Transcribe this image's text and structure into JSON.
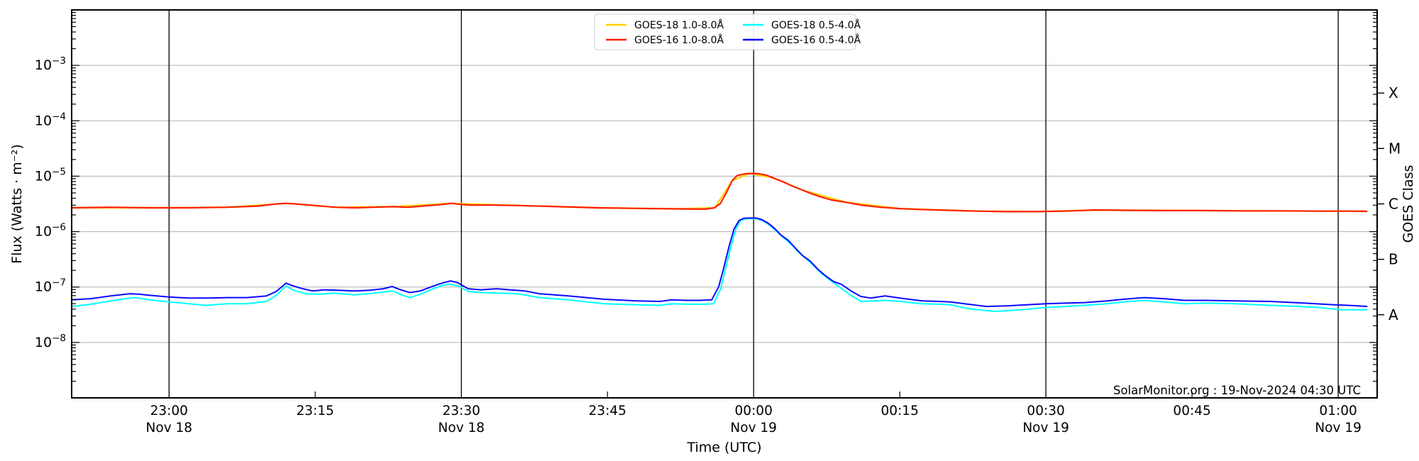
{
  "chart_data": {
    "type": "line",
    "title": "",
    "xlabel": "Time (UTC)",
    "ylabel": "Flux (Watts · m⁻²)",
    "ylabel_right": "GOES Class",
    "watermark": "SolarMonitor.org : 19-Nov-2024 04:30 UTC",
    "grid": true,
    "y_scale": "log",
    "y_range_exponents": [
      -9,
      -2
    ],
    "x_range_minutes": [
      0,
      134
    ],
    "x_start_time": "22:50 UTC Nov 18",
    "x_ticks": [
      {
        "t": 10,
        "label": "23:00",
        "date": "Nov 18",
        "line": true
      },
      {
        "t": 25,
        "label": "23:15",
        "date": "",
        "line": false
      },
      {
        "t": 40,
        "label": "23:30",
        "date": "Nov 18",
        "line": true
      },
      {
        "t": 55,
        "label": "23:45",
        "date": "",
        "line": false
      },
      {
        "t": 70,
        "label": "00:00",
        "date": "Nov 19",
        "line": true
      },
      {
        "t": 85,
        "label": "00:15",
        "date": "",
        "line": false
      },
      {
        "t": 100,
        "label": "00:30",
        "date": "Nov 19",
        "line": true
      },
      {
        "t": 115,
        "label": "00:45",
        "date": "",
        "line": false
      },
      {
        "t": 130,
        "label": "01:00",
        "date": "Nov 19",
        "line": true
      }
    ],
    "y_ticks": [
      {
        "exp": -3,
        "label": "10⁻³"
      },
      {
        "exp": -4,
        "label": "10⁻⁴"
      },
      {
        "exp": -5,
        "label": "10⁻⁵"
      },
      {
        "exp": -6,
        "label": "10⁻⁶"
      },
      {
        "exp": -7,
        "label": "10⁻⁷"
      },
      {
        "exp": -8,
        "label": "10⁻⁸"
      }
    ],
    "goes_classes": [
      {
        "label": "X",
        "exp": -3.5
      },
      {
        "label": "M",
        "exp": -4.5
      },
      {
        "label": "C",
        "exp": -5.5
      },
      {
        "label": "B",
        "exp": -6.5
      },
      {
        "label": "A",
        "exp": -7.5
      }
    ],
    "legend": {
      "position": "top-center",
      "entries": [
        {
          "label": "GOES-18 1.0-8.0Å",
          "color": "#ffd200"
        },
        {
          "label": "GOES-16 1.0-8.0Å",
          "color": "#ff2000"
        },
        {
          "label": "GOES-18 0.5-4.0Å",
          "color": "#00ffff"
        },
        {
          "label": "GOES-16 0.5-4.0Å",
          "color": "#0a0aff"
        }
      ]
    },
    "series": [
      {
        "name": "GOES-18 1.0-8.0Å",
        "color": "#ffd200",
        "width": 2.2,
        "note": "hidden beneath GOES-16 long channel",
        "points": [
          [
            0,
            -5.57
          ],
          [
            8,
            -5.57
          ],
          [
            16,
            -5.56
          ],
          [
            22,
            -5.49
          ],
          [
            27,
            -5.56
          ],
          [
            33,
            -5.55
          ],
          [
            39,
            -5.49
          ],
          [
            46,
            -5.53
          ],
          [
            54,
            -5.57
          ],
          [
            62,
            -5.59
          ],
          [
            66,
            -5.57
          ],
          [
            67.8,
            -5.08
          ],
          [
            69.6,
            -4.95
          ],
          [
            72,
            -5.03
          ],
          [
            75,
            -5.25
          ],
          [
            79.5,
            -5.47
          ],
          [
            85,
            -5.585
          ],
          [
            93,
            -5.63
          ],
          [
            99,
            -5.64
          ],
          [
            105,
            -5.61
          ],
          [
            116,
            -5.62
          ],
          [
            128,
            -5.63
          ],
          [
            133,
            -5.635
          ]
        ]
      },
      {
        "name": "GOES-16 1.0-8.0Å",
        "color": "#ff2000",
        "width": 2.2,
        "points": [
          [
            0,
            -5.57
          ],
          [
            4,
            -5.56
          ],
          [
            8,
            -5.57
          ],
          [
            12,
            -5.57
          ],
          [
            16,
            -5.56
          ],
          [
            19,
            -5.54
          ],
          [
            21,
            -5.5
          ],
          [
            22,
            -5.49
          ],
          [
            23,
            -5.5
          ],
          [
            25,
            -5.53
          ],
          [
            27,
            -5.56
          ],
          [
            29,
            -5.57
          ],
          [
            31,
            -5.56
          ],
          [
            33,
            -5.55
          ],
          [
            34.5,
            -5.56
          ],
          [
            36,
            -5.54
          ],
          [
            38,
            -5.51
          ],
          [
            39,
            -5.49
          ],
          [
            40,
            -5.51
          ],
          [
            41,
            -5.52
          ],
          [
            43,
            -5.52
          ],
          [
            46,
            -5.53
          ],
          [
            50,
            -5.55
          ],
          [
            54,
            -5.57
          ],
          [
            58,
            -5.58
          ],
          [
            62,
            -5.59
          ],
          [
            65,
            -5.595
          ],
          [
            66,
            -5.57
          ],
          [
            66.6,
            -5.49
          ],
          [
            67.2,
            -5.3
          ],
          [
            67.8,
            -5.08
          ],
          [
            68.3,
            -4.99
          ],
          [
            69,
            -4.96
          ],
          [
            69.6,
            -4.95
          ],
          [
            70.5,
            -4.955
          ],
          [
            71.3,
            -4.98
          ],
          [
            72,
            -5.03
          ],
          [
            73,
            -5.1
          ],
          [
            74,
            -5.18
          ],
          [
            75,
            -5.25
          ],
          [
            76,
            -5.32
          ],
          [
            77,
            -5.38
          ],
          [
            78,
            -5.43
          ],
          [
            79.5,
            -5.47
          ],
          [
            81,
            -5.52
          ],
          [
            83,
            -5.56
          ],
          [
            85,
            -5.585
          ],
          [
            87,
            -5.6
          ],
          [
            90,
            -5.615
          ],
          [
            93,
            -5.63
          ],
          [
            96,
            -5.64
          ],
          [
            99,
            -5.64
          ],
          [
            102,
            -5.63
          ],
          [
            105,
            -5.61
          ],
          [
            108,
            -5.615
          ],
          [
            112,
            -5.62
          ],
          [
            116,
            -5.62
          ],
          [
            120,
            -5.625
          ],
          [
            124,
            -5.625
          ],
          [
            128,
            -5.63
          ],
          [
            131,
            -5.63
          ],
          [
            133,
            -5.635
          ]
        ]
      },
      {
        "name": "GOES-18 0.5-4.0Å",
        "color": "#00ffff",
        "width": 2.0,
        "points": [
          [
            0,
            -7.35
          ],
          [
            2,
            -7.31
          ],
          [
            4,
            -7.25
          ],
          [
            6,
            -7.2
          ],
          [
            6.5,
            -7.19
          ],
          [
            8,
            -7.23
          ],
          [
            10,
            -7.27
          ],
          [
            12,
            -7.3
          ],
          [
            13.8,
            -7.33
          ],
          [
            16,
            -7.3
          ],
          [
            18,
            -7.3
          ],
          [
            20,
            -7.26
          ],
          [
            21,
            -7.15
          ],
          [
            22,
            -6.98
          ],
          [
            22.8,
            -7.06
          ],
          [
            24,
            -7.12
          ],
          [
            25.5,
            -7.13
          ],
          [
            27,
            -7.11
          ],
          [
            29,
            -7.14
          ],
          [
            30.5,
            -7.12
          ],
          [
            32,
            -7.09
          ],
          [
            32.9,
            -7.07
          ],
          [
            34,
            -7.15
          ],
          [
            34.7,
            -7.19
          ],
          [
            35.8,
            -7.13
          ],
          [
            37,
            -7.04
          ],
          [
            38,
            -6.97
          ],
          [
            38.9,
            -6.95
          ],
          [
            39.8,
            -6.99
          ],
          [
            40.7,
            -7.08
          ],
          [
            42,
            -7.1
          ],
          [
            43.6,
            -7.11
          ],
          [
            45.8,
            -7.12
          ],
          [
            48,
            -7.19
          ],
          [
            51,
            -7.23
          ],
          [
            54.6,
            -7.3
          ],
          [
            58,
            -7.32
          ],
          [
            60.4,
            -7.33
          ],
          [
            61.6,
            -7.3
          ],
          [
            63,
            -7.31
          ],
          [
            65,
            -7.31
          ],
          [
            65.9,
            -7.3
          ],
          [
            66.6,
            -7.04
          ],
          [
            67.1,
            -6.68
          ],
          [
            67.7,
            -6.25
          ],
          [
            68.2,
            -5.94
          ],
          [
            68.7,
            -5.79
          ],
          [
            69.2,
            -5.77
          ],
          [
            69.8,
            -5.765
          ],
          [
            70.4,
            -5.77
          ],
          [
            71,
            -5.81
          ],
          [
            71.7,
            -5.89
          ],
          [
            72.4,
            -6.0
          ],
          [
            73,
            -6.1
          ],
          [
            73.8,
            -6.22
          ],
          [
            74.6,
            -6.37
          ],
          [
            75.4,
            -6.49
          ],
          [
            76.2,
            -6.62
          ],
          [
            77,
            -6.76
          ],
          [
            77.8,
            -6.87
          ],
          [
            78.8,
            -7.0
          ],
          [
            80,
            -7.15
          ],
          [
            81,
            -7.26
          ],
          [
            82.5,
            -7.25
          ],
          [
            83.5,
            -7.24
          ],
          [
            85,
            -7.26
          ],
          [
            87.2,
            -7.3
          ],
          [
            89,
            -7.31
          ],
          [
            90.2,
            -7.32
          ],
          [
            92,
            -7.39
          ],
          [
            94.8,
            -7.44
          ],
          [
            97.5,
            -7.41
          ],
          [
            99.9,
            -7.37
          ],
          [
            102,
            -7.35
          ],
          [
            104,
            -7.33
          ],
          [
            106.3,
            -7.3
          ],
          [
            108,
            -7.27
          ],
          [
            110.1,
            -7.24
          ],
          [
            112.1,
            -7.27
          ],
          [
            114.2,
            -7.3
          ],
          [
            116.4,
            -7.29
          ],
          [
            119.4,
            -7.3
          ],
          [
            123,
            -7.33
          ],
          [
            125.9,
            -7.35
          ],
          [
            128.1,
            -7.37
          ],
          [
            130.3,
            -7.41
          ],
          [
            133,
            -7.41
          ]
        ]
      },
      {
        "name": "GOES-16 0.5-4.0Å",
        "color": "#0a0aff",
        "width": 2.0,
        "points": [
          [
            0,
            -7.23
          ],
          [
            2,
            -7.21
          ],
          [
            4,
            -7.16
          ],
          [
            6,
            -7.12
          ],
          [
            7,
            -7.13
          ],
          [
            8,
            -7.15
          ],
          [
            10,
            -7.18
          ],
          [
            12,
            -7.2
          ],
          [
            14,
            -7.2
          ],
          [
            16,
            -7.19
          ],
          [
            18,
            -7.19
          ],
          [
            20,
            -7.16
          ],
          [
            21,
            -7.08
          ],
          [
            22,
            -6.93
          ],
          [
            22.6,
            -6.97
          ],
          [
            23.5,
            -7.02
          ],
          [
            24.7,
            -7.07
          ],
          [
            26,
            -7.05
          ],
          [
            27.5,
            -7.06
          ],
          [
            29,
            -7.07
          ],
          [
            30.5,
            -7.06
          ],
          [
            32,
            -7.03
          ],
          [
            32.9,
            -6.99
          ],
          [
            33.6,
            -7.04
          ],
          [
            34.7,
            -7.1
          ],
          [
            35.8,
            -7.07
          ],
          [
            37,
            -6.99
          ],
          [
            38,
            -6.93
          ],
          [
            38.9,
            -6.89
          ],
          [
            39.6,
            -6.92
          ],
          [
            40.7,
            -7.03
          ],
          [
            42,
            -7.05
          ],
          [
            43.6,
            -7.03
          ],
          [
            45,
            -7.05
          ],
          [
            46.5,
            -7.07
          ],
          [
            48,
            -7.12
          ],
          [
            51,
            -7.16
          ],
          [
            54.6,
            -7.22
          ],
          [
            58,
            -7.25
          ],
          [
            60.4,
            -7.26
          ],
          [
            61.6,
            -7.23
          ],
          [
            63,
            -7.24
          ],
          [
            64.5,
            -7.24
          ],
          [
            65.7,
            -7.23
          ],
          [
            66.4,
            -7.0
          ],
          [
            66.9,
            -6.68
          ],
          [
            67.5,
            -6.25
          ],
          [
            68,
            -5.95
          ],
          [
            68.5,
            -5.8
          ],
          [
            69,
            -5.76
          ],
          [
            69.6,
            -5.755
          ],
          [
            70.2,
            -5.755
          ],
          [
            70.8,
            -5.78
          ],
          [
            71.5,
            -5.85
          ],
          [
            72.2,
            -5.95
          ],
          [
            72.8,
            -6.06
          ],
          [
            73.5,
            -6.15
          ],
          [
            74.2,
            -6.28
          ],
          [
            75,
            -6.43
          ],
          [
            75.8,
            -6.53
          ],
          [
            76.6,
            -6.68
          ],
          [
            77.4,
            -6.8
          ],
          [
            78.2,
            -6.9
          ],
          [
            79,
            -6.95
          ],
          [
            80,
            -7.07
          ],
          [
            81,
            -7.17
          ],
          [
            82,
            -7.2
          ],
          [
            83.5,
            -7.16
          ],
          [
            85,
            -7.2
          ],
          [
            87.3,
            -7.25
          ],
          [
            89,
            -7.26
          ],
          [
            90.2,
            -7.27
          ],
          [
            92,
            -7.31
          ],
          [
            93.9,
            -7.35
          ],
          [
            96,
            -7.34
          ],
          [
            98,
            -7.32
          ],
          [
            100,
            -7.3
          ],
          [
            102,
            -7.29
          ],
          [
            104,
            -7.28
          ],
          [
            106.3,
            -7.25
          ],
          [
            108,
            -7.22
          ],
          [
            110.1,
            -7.19
          ],
          [
            112.1,
            -7.21
          ],
          [
            114.2,
            -7.24
          ],
          [
            116.4,
            -7.24
          ],
          [
            119.4,
            -7.25
          ],
          [
            123,
            -7.26
          ],
          [
            126.6,
            -7.29
          ],
          [
            129.6,
            -7.32
          ],
          [
            131,
            -7.33
          ],
          [
            133,
            -7.35
          ]
        ]
      }
    ],
    "colors": {
      "grid": "#b0b0b0",
      "spine": "#000000",
      "day_line": "#000000",
      "legend_edge": "#cccccc"
    },
    "flare_peak": {
      "time": "00:00",
      "long_channel_peak_wm2": 1.1e-05,
      "short_channel_peak_wm2": 1.8e-06
    }
  }
}
